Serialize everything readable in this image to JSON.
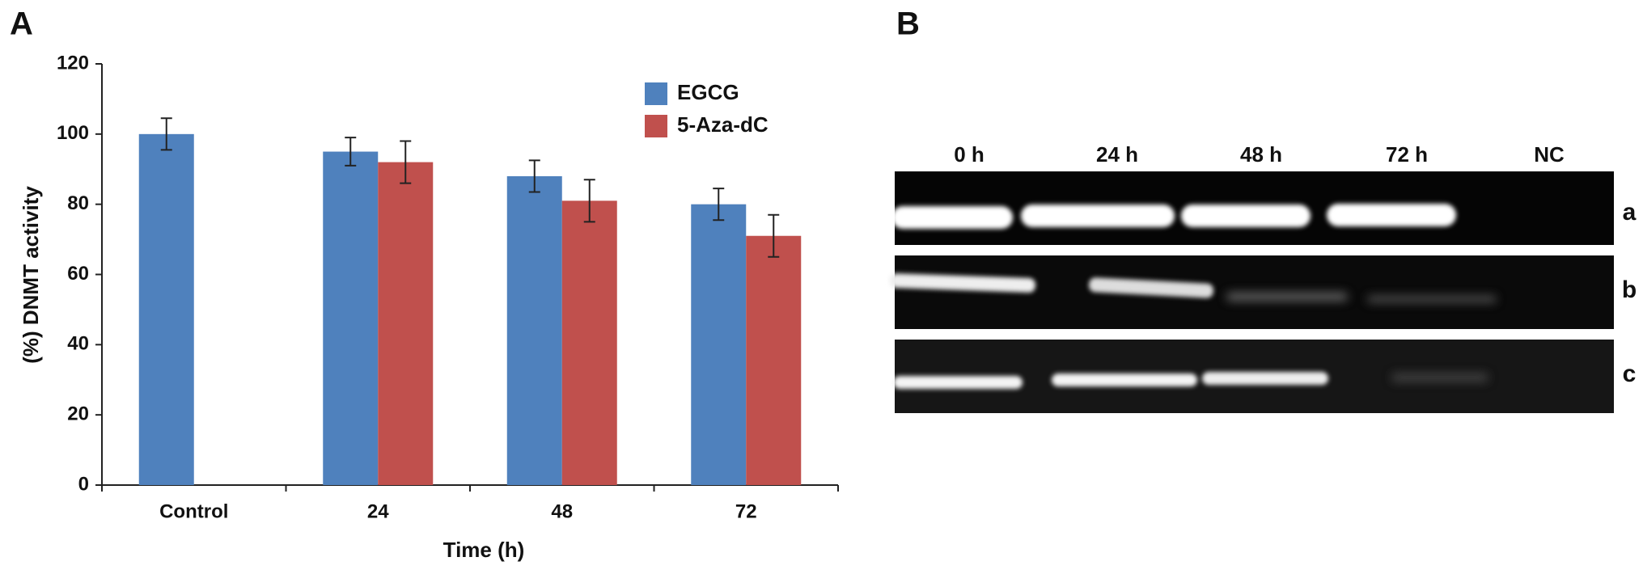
{
  "panel_labels": [
    "A",
    "B"
  ],
  "chart_data": {
    "type": "bar",
    "ylabel": "(%) DNMT activity",
    "xlabel": "Time (h)",
    "categories": [
      "Control",
      "24",
      "48",
      "72"
    ],
    "series": [
      {
        "name": "EGCG",
        "color": "#4f81bd",
        "values": [
          100,
          95,
          88,
          80
        ],
        "errors": [
          4.5,
          4,
          4.5,
          4.5
        ]
      },
      {
        "name": "5-Aza-dC",
        "color": "#c0504d",
        "values": [
          null,
          92,
          81,
          71
        ],
        "errors": [
          null,
          6,
          6,
          6
        ]
      }
    ],
    "ylim": [
      0,
      120
    ],
    "yticks": [
      0,
      20,
      40,
      60,
      80,
      100,
      120
    ]
  },
  "gel": {
    "lanes": [
      "0 h",
      "24 h",
      "48 h",
      "72 h",
      "NC"
    ],
    "rows": [
      "a",
      "b",
      "c"
    ]
  }
}
